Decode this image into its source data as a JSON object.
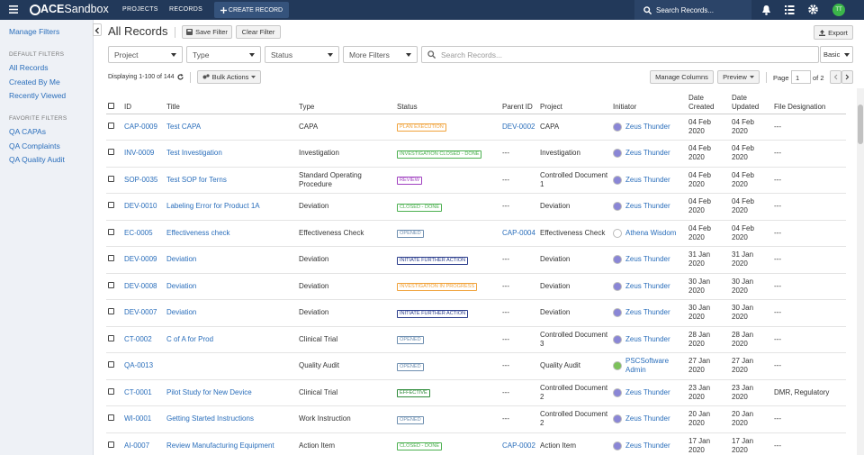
{
  "nav": {
    "logo_bold": "ACE",
    "logo_light": "Sandbox",
    "links": [
      "PROJECTS",
      "RECORDS"
    ],
    "create": "CREATE RECORD",
    "search": "Search Records...",
    "avatar": "TT"
  },
  "sidebar": {
    "manage": "Manage Filters",
    "default_heading": "DEFAULT FILTERS",
    "default_filters": [
      "All Records",
      "Created By Me",
      "Recently Viewed"
    ],
    "favorite_heading": "FAVORITE FILTERS",
    "favorite_filters": [
      "QA CAPAs",
      "QA Complaints",
      "QA Quality Audit"
    ]
  },
  "toolbar": {
    "title": "All Records",
    "save": "Save Filter",
    "clear": "Clear Filter",
    "export": "Export",
    "filters": [
      "Project",
      "Type",
      "Status",
      "More Filters"
    ],
    "search": "Search Records...",
    "mode": "Basic",
    "displaying": "Displaying 1-100 of 144",
    "bulk": "Bulk Actions",
    "manage_columns": "Manage Columns",
    "preview": "Preview",
    "page_label": "Page",
    "page": 1,
    "page_of": "of 2"
  },
  "table": {
    "columns": [
      "ID",
      "Title",
      "Type",
      "Status",
      "Parent ID",
      "Project",
      "Initiator",
      "Date Created",
      "Date Updated",
      "File Designation"
    ],
    "rows": [
      {
        "id": "CAP-0009",
        "title": "Test CAPA",
        "type": "CAPA",
        "status": "PLAN EXECUTION",
        "status_color": "#f0a23a",
        "parent": "DEV-0002",
        "project": "CAPA",
        "initiator": "Zeus Thunder",
        "initiator_color": "#8a86d6",
        "created": "04 Feb 2020",
        "updated": "04 Feb 2020",
        "file": "---"
      },
      {
        "id": "INV-0009",
        "title": "Test Investigation",
        "type": "Investigation",
        "status": "INVESTIGATION CLOSED - DONE",
        "status_color": "#4cb050",
        "parent": "---",
        "project": "Investigation",
        "initiator": "Zeus Thunder",
        "initiator_color": "#8a86d6",
        "created": "04 Feb 2020",
        "updated": "04 Feb 2020",
        "file": "---"
      },
      {
        "id": "SOP-0035",
        "title": "Test SOP for Terns",
        "type": "Standard Operating Procedure",
        "status": "REVIEW",
        "status_color": "#a040c0",
        "parent": "---",
        "project": "Controlled Document 1",
        "initiator": "Zeus Thunder",
        "initiator_color": "#8a86d6",
        "created": "04 Feb 2020",
        "updated": "04 Feb 2020",
        "file": "---"
      },
      {
        "id": "DEV-0010",
        "title": "Labeling Error for Product 1A",
        "type": "Deviation",
        "status": "CLOSED - DONE",
        "status_color": "#4cb050",
        "parent": "---",
        "project": "Deviation",
        "initiator": "Zeus Thunder",
        "initiator_color": "#8a86d6",
        "created": "04 Feb 2020",
        "updated": "04 Feb 2020",
        "file": "---"
      },
      {
        "id": "EC-0005",
        "title": "Effectiveness check",
        "type": "Effectiveness Check",
        "status": "OPENED",
        "status_color": "#6f8fb0",
        "parent": "CAP-0004",
        "project": "Effectiveness Check",
        "initiator": "Athena Wisdom",
        "initiator_color": "#ffffff",
        "created": "04 Feb 2020",
        "updated": "04 Feb 2020",
        "file": "---"
      },
      {
        "id": "DEV-0009",
        "title": "Deviation",
        "type": "Deviation",
        "status": "INITIATE FURTHER ACTION",
        "status_color": "#2c3e8c",
        "parent": "---",
        "project": "Deviation",
        "initiator": "Zeus Thunder",
        "initiator_color": "#8a86d6",
        "created": "31 Jan 2020",
        "updated": "31 Jan 2020",
        "file": "---"
      },
      {
        "id": "DEV-0008",
        "title": "Deviation",
        "type": "Deviation",
        "status": "INVESTIGATION IN PROGRESS",
        "status_color": "#f0a23a",
        "parent": "---",
        "project": "Deviation",
        "initiator": "Zeus Thunder",
        "initiator_color": "#8a86d6",
        "created": "30 Jan 2020",
        "updated": "30 Jan 2020",
        "file": "---"
      },
      {
        "id": "DEV-0007",
        "title": "Deviation",
        "type": "Deviation",
        "status": "INITIATE FURTHER ACTION",
        "status_color": "#2c3e8c",
        "parent": "---",
        "project": "Deviation",
        "initiator": "Zeus Thunder",
        "initiator_color": "#8a86d6",
        "created": "30 Jan 2020",
        "updated": "30 Jan 2020",
        "file": "---"
      },
      {
        "id": "CT-0002",
        "title": "C of A for Prod",
        "type": "Clinical Trial",
        "status": "OPENED",
        "status_color": "#6f8fb0",
        "parent": "---",
        "project": "Controlled Document 3",
        "initiator": "Zeus Thunder",
        "initiator_color": "#8a86d6",
        "created": "28 Jan 2020",
        "updated": "28 Jan 2020",
        "file": "---"
      },
      {
        "id": "QA-0013",
        "type": "Quality Audit",
        "status": "OPENED",
        "status_color": "#6f8fb0",
        "parent": "---",
        "project": "Quality Audit",
        "initiator": "PSCSoftware Admin",
        "initiator_color": "#7cc15a",
        "created": "27 Jan 2020",
        "updated": "27 Jan 2020",
        "file": "---"
      },
      {
        "id": "CT-0001",
        "title": "Pilot Study for New Device",
        "type": "Clinical Trial",
        "status": "EFFECTIVE",
        "status_color": "#2e8b3a",
        "parent": "---",
        "project": "Controlled Document 2",
        "initiator": "Zeus Thunder",
        "initiator_color": "#8a86d6",
        "created": "23 Jan 2020",
        "updated": "23 Jan 2020",
        "file": "DMR, Regulatory"
      },
      {
        "id": "WI-0001",
        "title": "Getting Started Instructions",
        "type": "Work Instruction",
        "status": "OPENED",
        "status_color": "#6f8fb0",
        "parent": "---",
        "project": "Controlled Document 2",
        "initiator": "Zeus Thunder",
        "initiator_color": "#8a86d6",
        "created": "20 Jan 2020",
        "updated": "20 Jan 2020",
        "file": "---"
      },
      {
        "id": "AI-0007",
        "title": "Review Manufacturing Equipment",
        "type": "Action Item",
        "status": "CLOSED - DONE",
        "status_color": "#4cb050",
        "parent": "CAP-0002",
        "project": "Action Item",
        "initiator": "Zeus Thunder",
        "initiator_color": "#8a86d6",
        "created": "17 Jan 2020",
        "updated": "17 Jan 2020",
        "file": "---"
      }
    ]
  }
}
